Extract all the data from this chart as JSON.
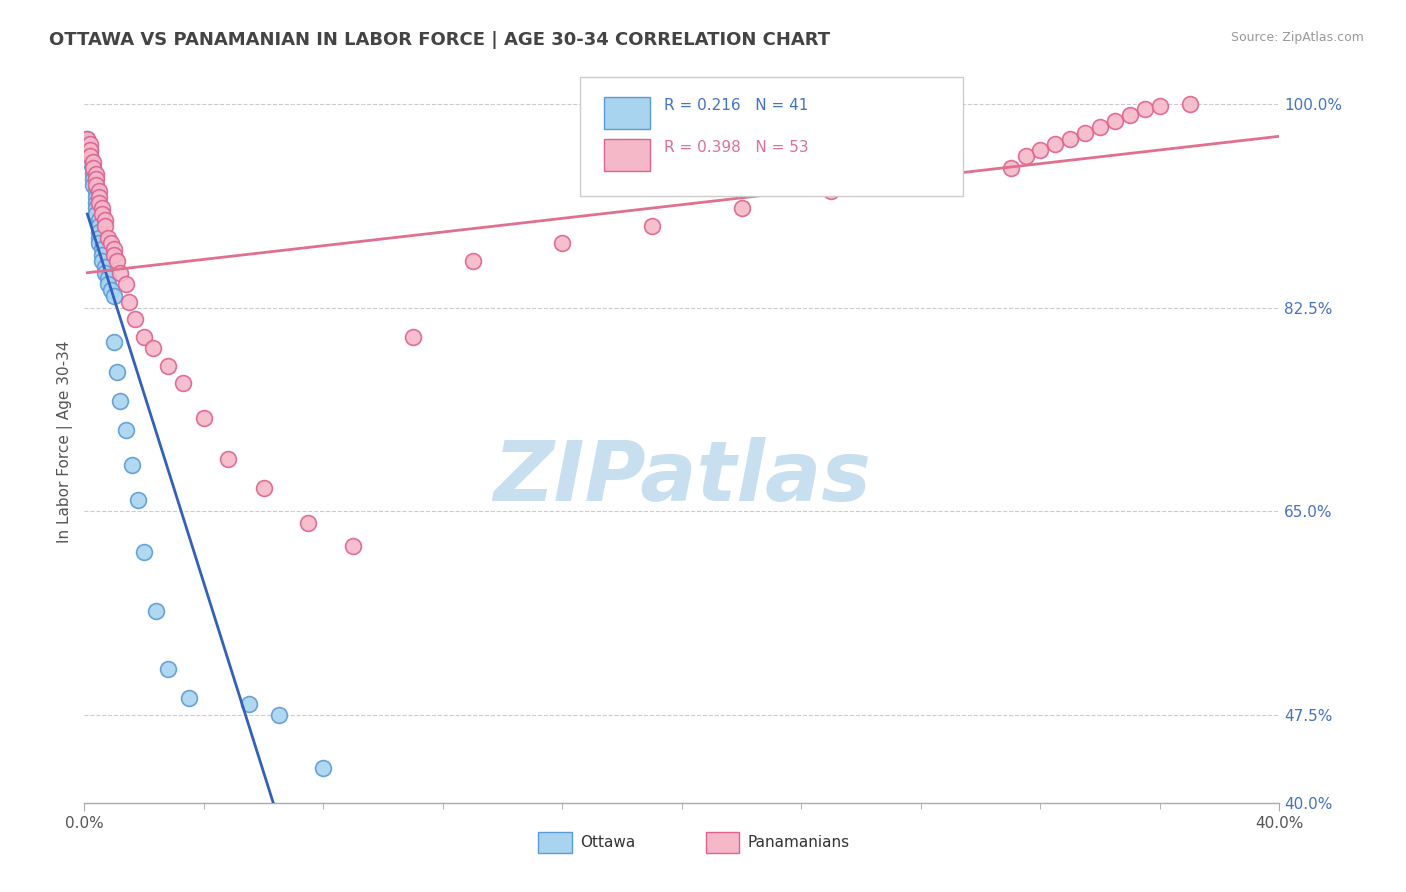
{
  "title": "OTTAWA VS PANAMANIAN IN LABOR FORCE | AGE 30-34 CORRELATION CHART",
  "source": "Source: ZipAtlas.com",
  "ylabel": "In Labor Force | Age 30-34",
  "xlim": [
    0.0,
    0.4
  ],
  "ylim": [
    0.4,
    1.02
  ],
  "ytick_values": [
    0.4,
    0.475,
    0.65,
    0.825,
    1.0
  ],
  "ytick_labels": [
    "40.0%",
    "47.5%",
    "65.0%",
    "82.5%",
    "100.0%"
  ],
  "xtick_values": [
    0.0,
    0.4
  ],
  "xtick_labels": [
    "0.0%",
    "40.0%"
  ],
  "hgrid_values": [
    0.475,
    0.65,
    0.825,
    1.0
  ],
  "legend_r_ottawa": "R = 0.216",
  "legend_n_ottawa": "N = 41",
  "legend_r_panama": "R = 0.398",
  "legend_n_panama": "N = 53",
  "ottawa_color": "#a8d4f0",
  "panama_color": "#f5b8c8",
  "ottawa_edge_color": "#5b9bd5",
  "panama_edge_color": "#e06090",
  "ottawa_line_color": "#3060c0",
  "panama_line_color": "#e07090",
  "watermark_text": "ZIPatlas",
  "watermark_color": "#c8dff0",
  "background_color": "#ffffff",
  "ottawa_x": [
    0.001,
    0.001,
    0.002,
    0.002,
    0.002,
    0.003,
    0.003,
    0.003,
    0.003,
    0.004,
    0.004,
    0.004,
    0.004,
    0.004,
    0.005,
    0.005,
    0.005,
    0.005,
    0.005,
    0.006,
    0.006,
    0.006,
    0.007,
    0.007,
    0.008,
    0.008,
    0.009,
    0.01,
    0.01,
    0.011,
    0.012,
    0.014,
    0.016,
    0.018,
    0.02,
    0.024,
    0.028,
    0.035,
    0.055,
    0.065,
    0.08
  ],
  "ottawa_y": [
    0.97,
    0.965,
    0.96,
    0.955,
    0.95,
    0.945,
    0.94,
    0.935,
    0.93,
    0.925,
    0.92,
    0.915,
    0.91,
    0.905,
    0.9,
    0.895,
    0.89,
    0.885,
    0.88,
    0.875,
    0.87,
    0.865,
    0.86,
    0.855,
    0.85,
    0.845,
    0.84,
    0.835,
    0.795,
    0.77,
    0.745,
    0.72,
    0.69,
    0.66,
    0.615,
    0.565,
    0.515,
    0.49,
    0.485,
    0.475,
    0.43
  ],
  "panama_x": [
    0.001,
    0.002,
    0.002,
    0.002,
    0.003,
    0.003,
    0.004,
    0.004,
    0.004,
    0.005,
    0.005,
    0.005,
    0.006,
    0.006,
    0.007,
    0.007,
    0.008,
    0.009,
    0.01,
    0.01,
    0.011,
    0.012,
    0.014,
    0.015,
    0.017,
    0.02,
    0.023,
    0.028,
    0.033,
    0.04,
    0.048,
    0.06,
    0.075,
    0.09,
    0.11,
    0.13,
    0.16,
    0.19,
    0.22,
    0.25,
    0.28,
    0.31,
    0.315,
    0.32,
    0.325,
    0.33,
    0.335,
    0.34,
    0.345,
    0.35,
    0.355,
    0.36,
    0.37
  ],
  "panama_y": [
    0.97,
    0.965,
    0.96,
    0.955,
    0.95,
    0.945,
    0.94,
    0.935,
    0.93,
    0.925,
    0.92,
    0.915,
    0.91,
    0.905,
    0.9,
    0.895,
    0.885,
    0.88,
    0.875,
    0.87,
    0.865,
    0.855,
    0.845,
    0.83,
    0.815,
    0.8,
    0.79,
    0.775,
    0.76,
    0.73,
    0.695,
    0.67,
    0.64,
    0.62,
    0.8,
    0.865,
    0.88,
    0.895,
    0.91,
    0.925,
    0.935,
    0.945,
    0.955,
    0.96,
    0.965,
    0.97,
    0.975,
    0.98,
    0.985,
    0.99,
    0.995,
    0.998,
    1.0
  ]
}
